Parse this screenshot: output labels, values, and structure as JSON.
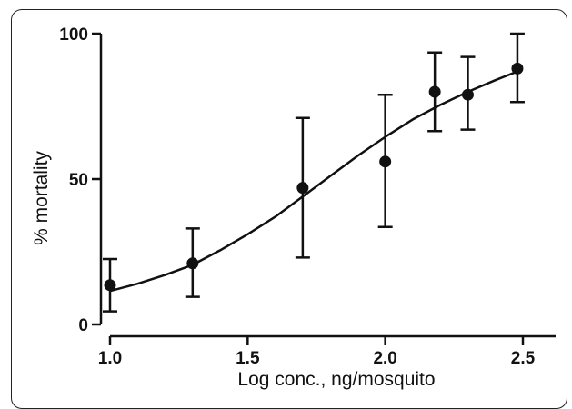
{
  "chart_data": {
    "type": "scatter",
    "title": "",
    "xlabel": "Log conc., ng/mosquito",
    "ylabel": "% mortality",
    "xlim": [
      1.0,
      2.6
    ],
    "ylim": [
      0,
      100
    ],
    "x_ticks": [
      1.0,
      1.5,
      2.0,
      2.5
    ],
    "x_tick_labels": [
      "1.0",
      "1.5",
      "2.0",
      "2.5"
    ],
    "y_ticks": [
      0,
      50,
      100
    ],
    "y_tick_labels": [
      "0",
      "50",
      "100"
    ],
    "grid": false,
    "legend": "none",
    "point_color": "#111111",
    "points": [
      {
        "x": 1.0,
        "y": 13.5,
        "err_low": 4.5,
        "err_high": 22.5
      },
      {
        "x": 1.3,
        "y": 21,
        "err_low": 9.5,
        "err_high": 33
      },
      {
        "x": 1.7,
        "y": 47,
        "err_low": 23,
        "err_high": 71
      },
      {
        "x": 2.0,
        "y": 56,
        "err_low": 33.5,
        "err_high": 79
      },
      {
        "x": 2.18,
        "y": 80,
        "err_low": 66.5,
        "err_high": 93.5
      },
      {
        "x": 2.3,
        "y": 79,
        "err_low": 67,
        "err_high": 92
      },
      {
        "x": 2.48,
        "y": 88,
        "err_low": 76.5,
        "err_high": 100
      }
    ],
    "fit_curve": {
      "type": "sigmoid",
      "x": [
        1.0,
        1.1,
        1.2,
        1.3,
        1.4,
        1.5,
        1.6,
        1.7,
        1.8,
        1.9,
        2.0,
        2.1,
        2.2,
        2.3,
        2.4,
        2.48
      ],
      "y": [
        11.5,
        14,
        17,
        20.5,
        25.5,
        31,
        37,
        44,
        51,
        58,
        64.5,
        70.5,
        75.5,
        80,
        84,
        87
      ]
    }
  }
}
